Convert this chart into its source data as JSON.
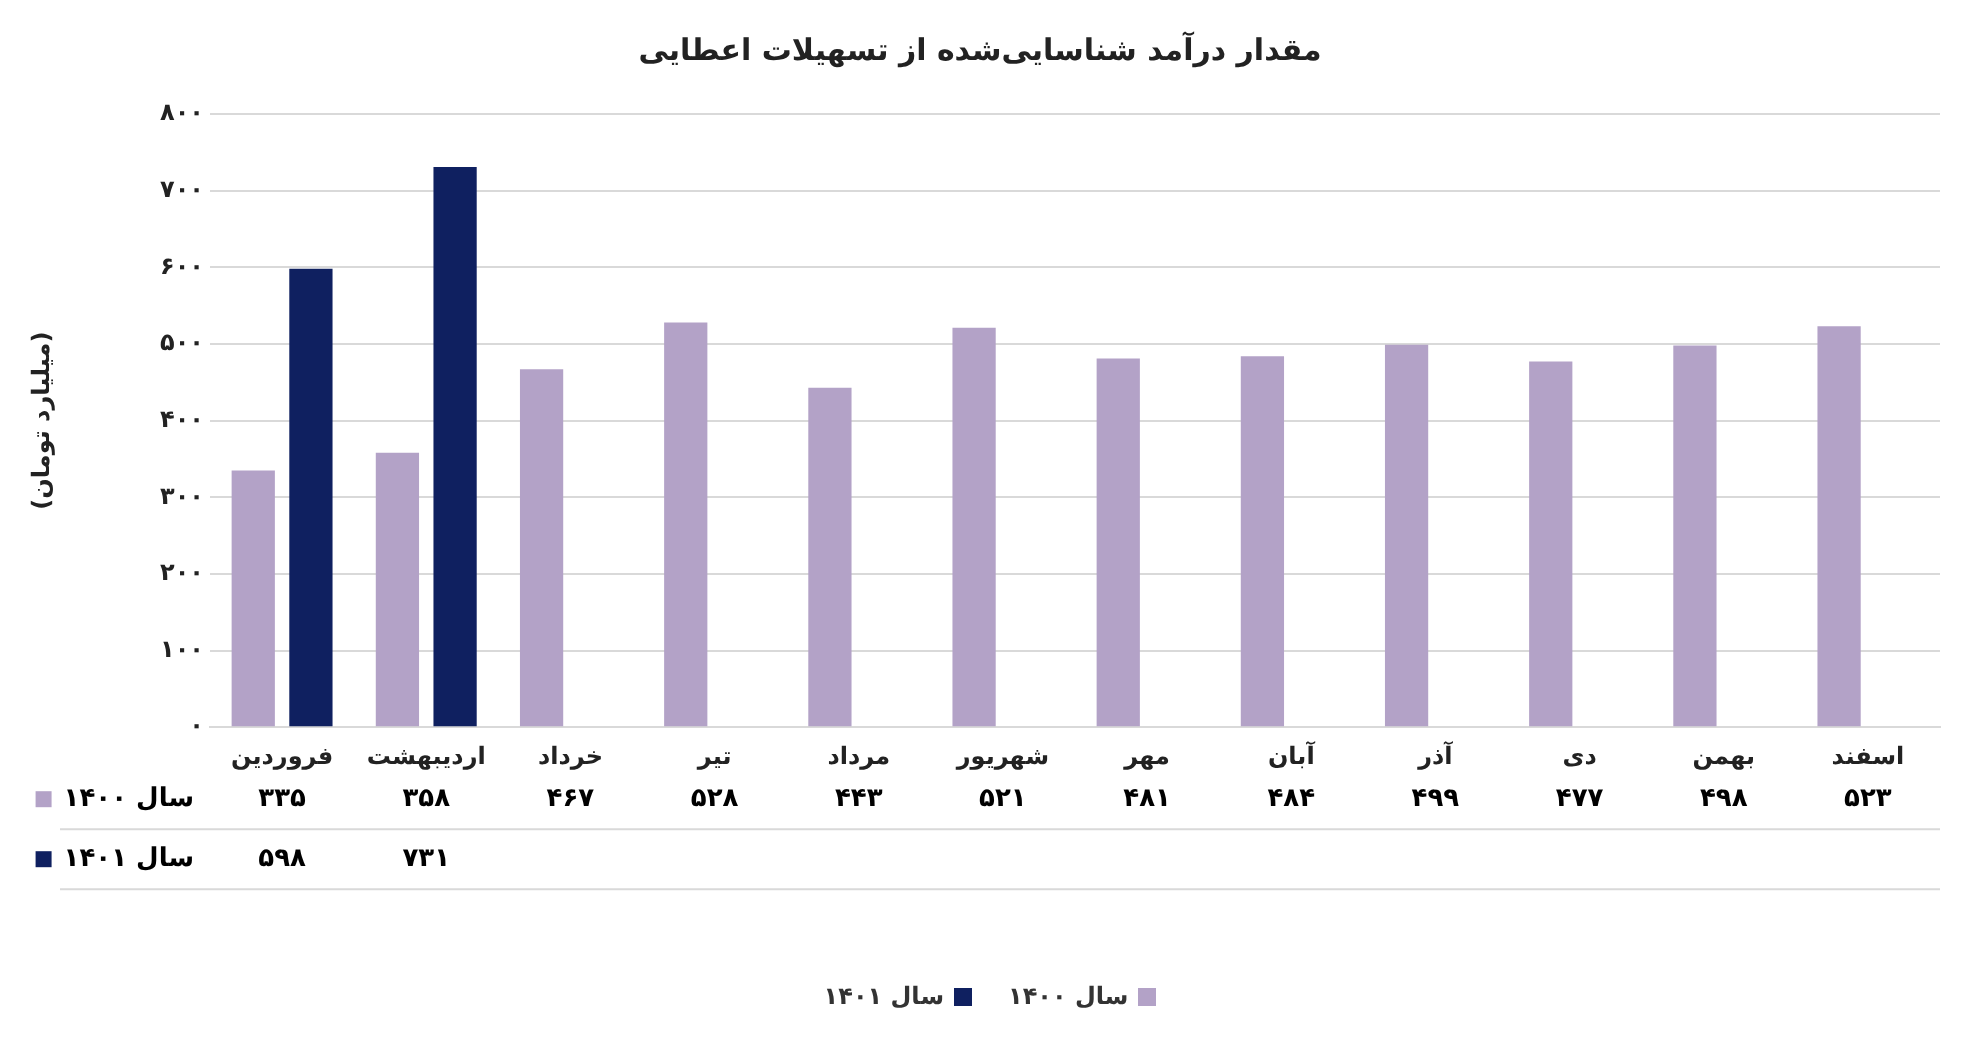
{
  "chart_data": {
    "type": "bar",
    "title": "مقدار درآمد شناسایی‌شده از تسهیلات اعطایی",
    "ylabel": "(میلیارد تومان)",
    "categories": [
      "فروردین",
      "اردیبهشت",
      "خرداد",
      "تیر",
      "مرداد",
      "شهریور",
      "مهر",
      "آبان",
      "آذر",
      "دی",
      "بهمن",
      "اسفند"
    ],
    "series": [
      {
        "name": "سال ۱۴۰۰",
        "color": "#b3a2c7",
        "values": [
          335,
          358,
          467,
          528,
          443,
          521,
          481,
          484,
          499,
          477,
          498,
          523
        ],
        "value_labels": [
          "۳۳۵",
          "۳۵۸",
          "۴۶۷",
          "۵۲۸",
          "۴۴۳",
          "۵۲۱",
          "۴۸۱",
          "۴۸۴",
          "۴۹۹",
          "۴۷۷",
          "۴۹۸",
          "۵۲۳"
        ]
      },
      {
        "name": "سال ۱۴۰۱",
        "color": "#0f2060",
        "values": [
          598,
          731,
          null,
          null,
          null,
          null,
          null,
          null,
          null,
          null,
          null,
          null
        ],
        "value_labels": [
          "۵۹۸",
          "۷۳۱",
          null,
          null,
          null,
          null,
          null,
          null,
          null,
          null,
          null,
          null
        ]
      }
    ],
    "ylim": [
      0,
      800
    ],
    "yticks": [
      {
        "value": 0,
        "label": "۰"
      },
      {
        "value": 100,
        "label": "۱۰۰"
      },
      {
        "value": 200,
        "label": "۲۰۰"
      },
      {
        "value": 300,
        "label": "۳۰۰"
      },
      {
        "value": 400,
        "label": "۴۰۰"
      },
      {
        "value": 500,
        "label": "۵۰۰"
      },
      {
        "value": 600,
        "label": "۶۰۰"
      },
      {
        "value": 700,
        "label": "۷۰۰"
      },
      {
        "value": 800,
        "label": "۸۰۰"
      }
    ],
    "grid": "y",
    "legend": "bottom"
  }
}
